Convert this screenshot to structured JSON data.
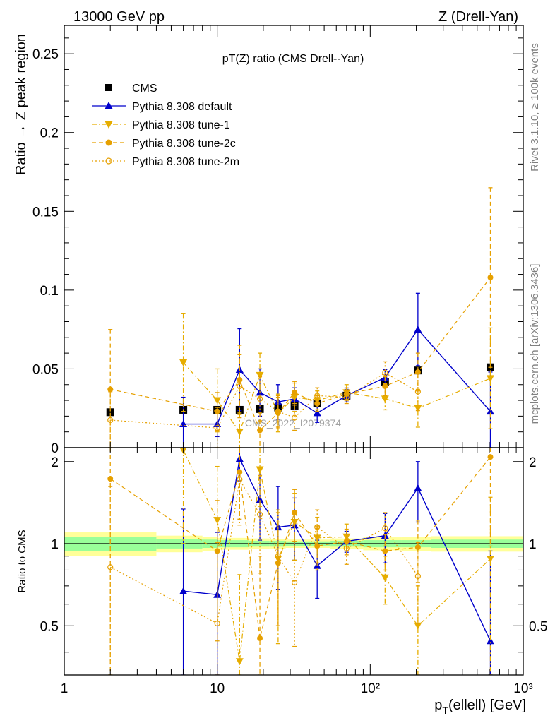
{
  "header": {
    "left": "13000 GeV pp",
    "right": "Z (Drell-Yan)"
  },
  "side_labels": {
    "rivet": "Rivet 3.1.10, ≥ 100k events",
    "site": "mcplots.cern.ch [arXiv:1306.3436]"
  },
  "chart_data": [
    {
      "type": "scatter",
      "panel": "main",
      "title": "pT(Z) ratio (CMS Drell--Yan)",
      "ylabel": "Ratio → Z peak region",
      "xlabel": "",
      "xscale": "log",
      "xlim": [
        1,
        1000
      ],
      "ylim": [
        0,
        0.268
      ],
      "yticks": [
        "0",
        "0.05",
        "0.1",
        "0.15",
        "0.2",
        "0.25"
      ],
      "watermark": "CMS_2022_I2079374",
      "legend_position": "top-left",
      "series": [
        {
          "name": "CMS",
          "color": "#000000",
          "marker": "square-filled",
          "line": "none",
          "x": [
            2,
            6,
            10,
            14,
            19,
            25,
            32,
            45,
            70,
            125,
            205,
            610
          ],
          "y": [
            0.0225,
            0.024,
            0.024,
            0.024,
            0.0245,
            0.0255,
            0.0265,
            0.028,
            0.033,
            0.0415,
            0.049,
            0.051
          ]
        },
        {
          "name": "Pythia 8.308 default",
          "color": "#0000cc",
          "marker": "triangle-up-filled",
          "line": "solid",
          "x": [
            6,
            10,
            14,
            19,
            25,
            32,
            45,
            70,
            125,
            205,
            610
          ],
          "y": [
            0.015,
            0.015,
            0.0495,
            0.035,
            0.029,
            0.031,
            0.022,
            0.033,
            0.0445,
            0.075,
            0.023
          ],
          "yerr": [
            0.017,
            0.008,
            0.026,
            0.015,
            0.011,
            0.007,
            0.006,
            0.004,
            0.005,
            0.023,
            0.025
          ]
        },
        {
          "name": "Pythia 8.308 tune-1",
          "color": "#e6ad00",
          "marker": "triangle-down-filled",
          "line": "dashdot",
          "x": [
            6,
            10,
            14,
            19,
            25,
            32,
            45,
            70,
            125,
            205,
            610
          ],
          "y": [
            0.054,
            0.03,
            0.01,
            0.046,
            0.022,
            0.032,
            0.03,
            0.035,
            0.031,
            0.025,
            0.044
          ],
          "yerr": [
            0.031,
            0.02,
            0.012,
            0.014,
            0.012,
            0.009,
            0.006,
            0.005,
            0.007,
            0.012,
            0.032
          ]
        },
        {
          "name": "Pythia 8.308 tune-2c",
          "color": "#e6a000",
          "marker": "circle-filled",
          "line": "dashed",
          "x": [
            2,
            10,
            14,
            19,
            25,
            32,
            45,
            70,
            125,
            205,
            610
          ],
          "y": [
            0.037,
            0.023,
            0.043,
            0.011,
            0.022,
            0.035,
            0.028,
            0.034,
            0.039,
            0.048,
            0.108
          ],
          "yerr": [
            0.038,
            0.012,
            0.022,
            0.011,
            0.01,
            0.007,
            0.005,
            0.004,
            0.006,
            0.012,
            0.057
          ]
        },
        {
          "name": "Pythia 8.308 tune-2m",
          "color": "#e6a000",
          "marker": "circle-open",
          "line": "dotted",
          "x": [
            2,
            10,
            14,
            19,
            25,
            32,
            45,
            70,
            125,
            205,
            610
          ],
          "y": [
            0.0175,
            0.0125,
            0.039,
            0.031,
            0.023,
            0.019,
            0.033,
            0.032,
            0.0475,
            0.0355,
            0.0
          ],
          "yerr": [
            0.018,
            0.013,
            0.02,
            0.014,
            0.01,
            0.008,
            0.005,
            0.004,
            0.007,
            0.012,
            0.0
          ]
        }
      ]
    },
    {
      "type": "scatter",
      "panel": "ratio",
      "ylabel": "Ratio to CMS",
      "xlabel": "p_T(ellell) [GeV]",
      "xscale": "log",
      "xlim": [
        1,
        1000
      ],
      "ylim": [
        0.33,
        2.25
      ],
      "yticks": [
        "0.5",
        "1",
        "2"
      ],
      "xticks": [
        "1",
        "10",
        "10²",
        "10³"
      ],
      "bands": {
        "inner_color": "#99ff99",
        "outer_color": "#ffff99",
        "edges": [
          1,
          4,
          8,
          10,
          12,
          16,
          22,
          28,
          37,
          55,
          90,
          160,
          250,
          1000
        ],
        "inner": [
          0.06,
          0.04,
          0.035,
          0.03,
          0.03,
          0.025,
          0.025,
          0.02,
          0.02,
          0.025,
          0.03,
          0.03,
          0.035
        ],
        "outer": [
          0.1,
          0.07,
          0.06,
          0.05,
          0.05,
          0.045,
          0.04,
          0.035,
          0.035,
          0.045,
          0.055,
          0.06,
          0.065
        ]
      },
      "series": [
        {
          "name": "Pythia 8.308 default",
          "color": "#0000cc",
          "x": [
            6,
            10,
            14,
            19,
            25,
            32,
            45,
            70,
            125,
            205,
            610
          ],
          "y": [
            0.67,
            0.65,
            2.05,
            1.45,
            1.15,
            1.17,
            0.83,
            1.02,
            1.07,
            1.6,
            0.44
          ],
          "yerr": [
            0.67,
            0.45,
            0.35,
            0.42,
            0.47,
            0.3,
            0.2,
            0.09,
            0.22,
            0.4,
            0.5
          ]
        },
        {
          "name": "Pythia 8.308 tune-1",
          "color": "#e6ad00",
          "x": [
            6,
            10,
            14,
            19,
            25,
            32,
            45,
            70,
            125,
            205,
            610
          ],
          "y": [
            2.2,
            1.22,
            0.37,
            1.87,
            0.88,
            1.2,
            1.05,
            1.06,
            0.75,
            0.5,
            0.88
          ],
          "yerr": [
            1.2,
            0.7,
            0.4,
            0.5,
            0.45,
            0.33,
            0.2,
            0.12,
            0.15,
            0.2,
            0.6
          ]
        },
        {
          "name": "Pythia 8.308 tune-2c",
          "color": "#e6a000",
          "x": [
            2,
            10,
            14,
            19,
            25,
            32,
            45,
            70,
            125,
            205,
            610
          ],
          "y": [
            1.73,
            0.94,
            1.83,
            0.45,
            0.85,
            1.3,
            0.98,
            1.02,
            0.94,
            0.97,
            2.08
          ],
          "yerr": [
            1.7,
            0.5,
            0.6,
            0.45,
            0.35,
            0.28,
            0.18,
            0.11,
            0.14,
            0.25,
            1.1
          ]
        },
        {
          "name": "Pythia 8.308 tune-2m",
          "color": "#e6a000",
          "x": [
            2,
            10,
            14,
            19,
            25,
            32,
            45,
            70,
            125,
            205
          ],
          "y": [
            0.82,
            0.51,
            1.72,
            1.28,
            0.9,
            0.72,
            1.15,
            0.96,
            1.14,
            0.76
          ],
          "yerr": [
            0.8,
            0.5,
            0.55,
            0.5,
            0.4,
            0.3,
            0.18,
            0.12,
            0.16,
            0.25
          ]
        }
      ]
    }
  ]
}
